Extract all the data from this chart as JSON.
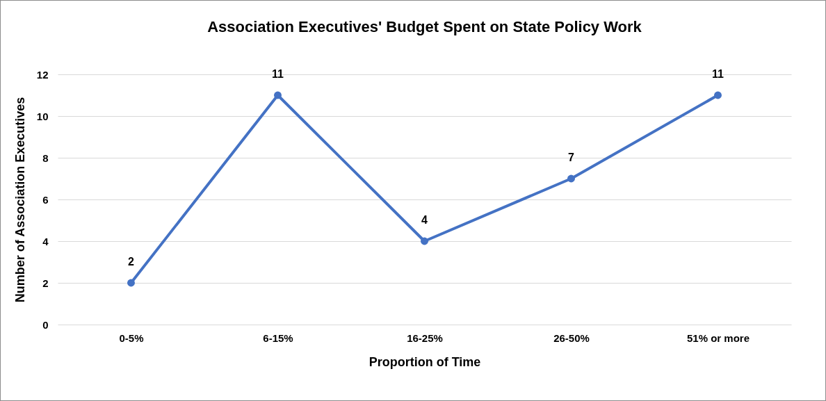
{
  "chart_data": {
    "type": "line",
    "title": "Association Executives' Budget Spent on State Policy Work",
    "xlabel": "Proportion of Time",
    "ylabel": "Number of Association Executives",
    "categories": [
      "0-5%",
      "6-15%",
      "16-25%",
      "26-50%",
      "51% or more"
    ],
    "series": [
      {
        "color": "#4472c4",
        "values": [
          2,
          11,
          4,
          7,
          11
        ]
      }
    ],
    "ylim": [
      0,
      12
    ],
    "yticks": [
      0,
      2,
      4,
      6,
      8,
      10,
      12
    ],
    "grid": "y",
    "legend": false,
    "marker": "circle",
    "line_style": "solid",
    "data_labels": true
  }
}
